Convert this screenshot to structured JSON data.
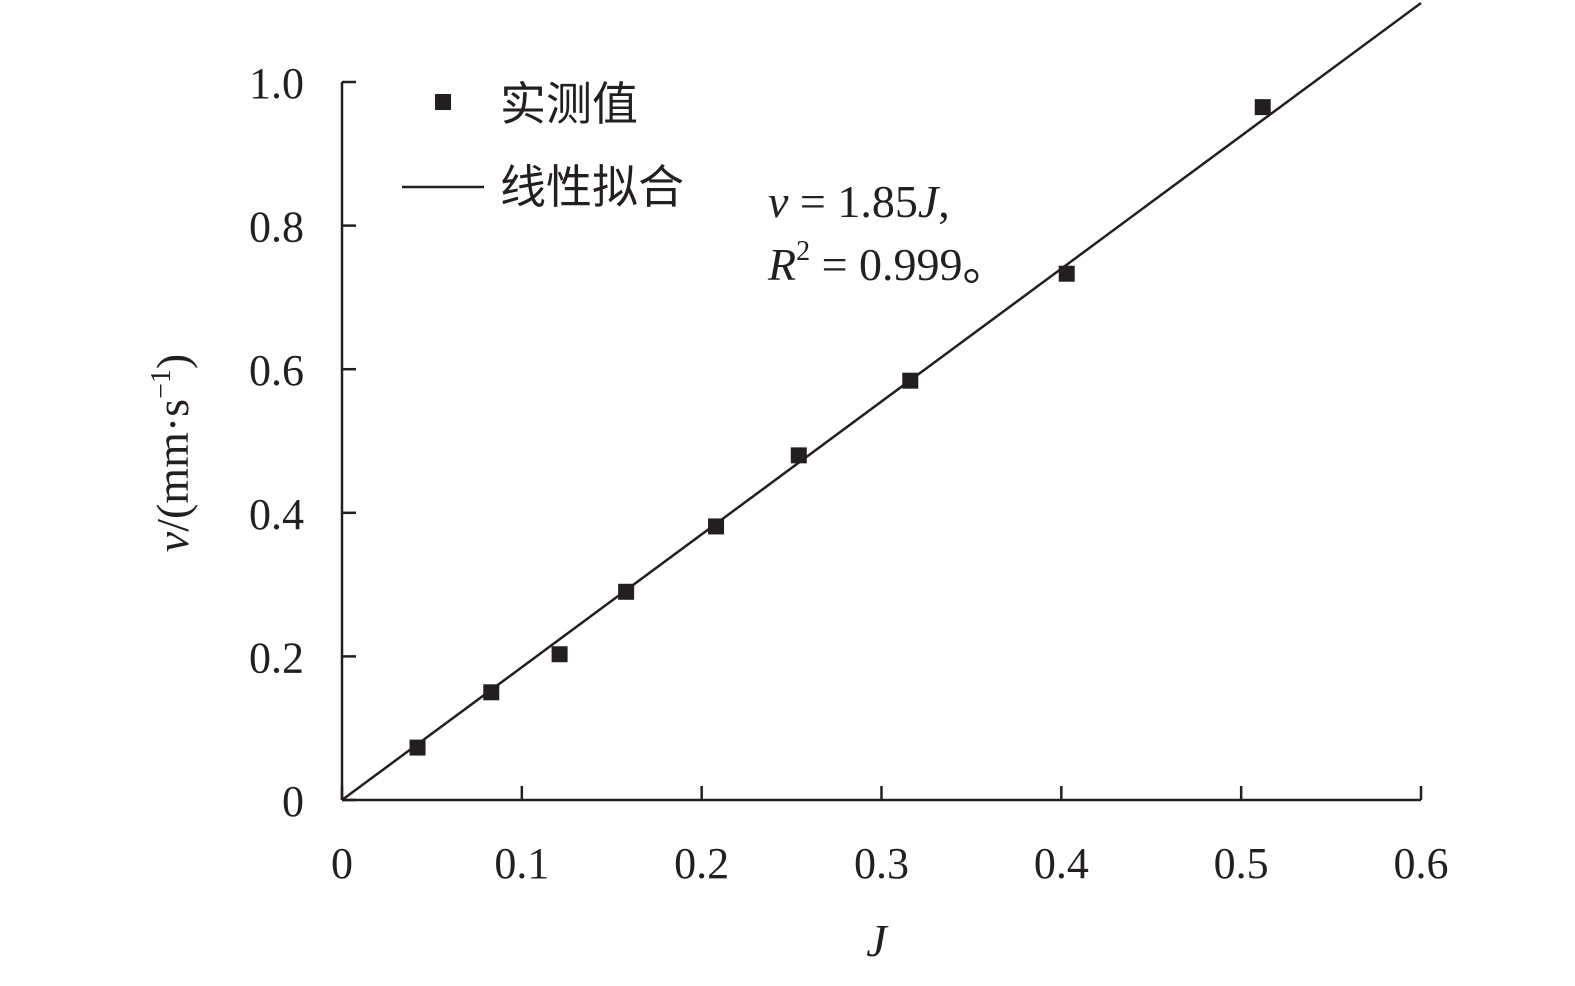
{
  "chart_data": {
    "type": "scatter",
    "xlabel": "J",
    "ylabel": "v/(mm·s⁻¹)",
    "ylabel_parts": {
      "pre": "v/(mm·s",
      "sup": "−1",
      "post": ")"
    },
    "xlim": [
      0,
      0.6
    ],
    "ylim": [
      0,
      1.0
    ],
    "x_ticks": [
      0,
      0.1,
      0.2,
      0.3,
      0.4,
      0.5,
      0.6
    ],
    "x_tick_labels": [
      "0",
      "0.1",
      "0.2",
      "0.3",
      "0.4",
      "0.5",
      "0.6"
    ],
    "y_ticks": [
      0,
      0.2,
      0.4,
      0.6,
      0.8,
      1.0
    ],
    "y_tick_labels": [
      "0",
      "0.2",
      "0.4",
      "0.6",
      "0.8",
      "1.0"
    ],
    "grid": false,
    "legend_placement": "top-left",
    "series": [
      {
        "name": "实测值",
        "kind": "scatter",
        "marker": "square",
        "x": [
          0.042,
          0.083,
          0.121,
          0.158,
          0.208,
          0.254,
          0.316,
          0.403,
          0.512
        ],
        "y": [
          0.073,
          0.15,
          0.203,
          0.29,
          0.381,
          0.48,
          0.584,
          0.733,
          0.965
        ]
      },
      {
        "name": "线性拟合",
        "kind": "line",
        "slope": 1.85,
        "x": [
          0,
          0.6
        ],
        "y": [
          0,
          1.11
        ]
      }
    ],
    "annotation": {
      "line1": {
        "v": "v",
        "rest": " = 1.85",
        "J": "J",
        "comma": ","
      },
      "line2": {
        "R": "R",
        "sup": "2",
        "rest": " = 0.999。"
      }
    },
    "colors": {
      "ink": "#231f20"
    }
  }
}
